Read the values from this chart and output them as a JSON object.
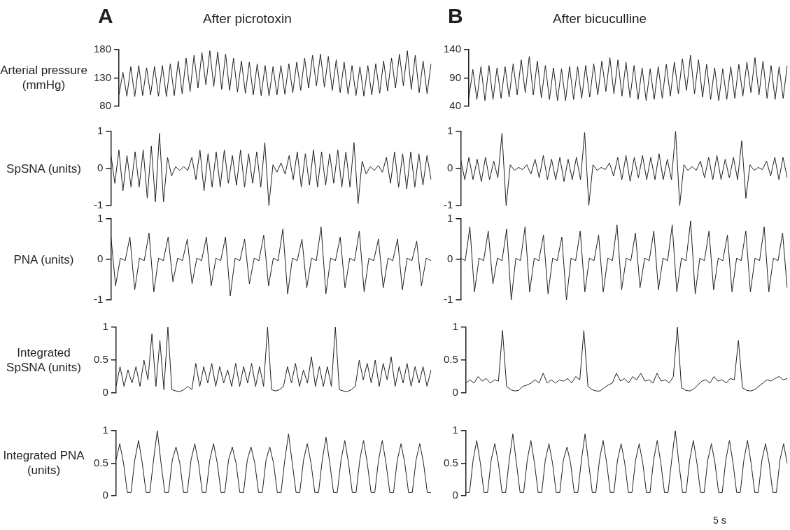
{
  "chart_data": [
    {
      "type": "line",
      "title": "After picrotoxin",
      "annotations": [
        "A"
      ],
      "ylabel": "Arterial pressure (mmHg)",
      "color": "#231f20",
      "tick_labels": "y",
      "ylim": [
        80,
        180
      ],
      "yticks": [
        80,
        130,
        180
      ],
      "categories": [
        null,
        null,
        null,
        null,
        null,
        null,
        null,
        null,
        null,
        null,
        null,
        null,
        null,
        null,
        null,
        null,
        null,
        null,
        null,
        null,
        null,
        null,
        null,
        null,
        null,
        null,
        null,
        null,
        null,
        null,
        null,
        null,
        null,
        null,
        null,
        null,
        null,
        null,
        null,
        null,
        null,
        null,
        null,
        null,
        null,
        null,
        null,
        null,
        null,
        null,
        null,
        null,
        null,
        null,
        null,
        null,
        null,
        null,
        null,
        null,
        null,
        null,
        null,
        null,
        null,
        null,
        null,
        null,
        null,
        null,
        null,
        null,
        null,
        null,
        null,
        null,
        null,
        null,
        null,
        null
      ],
      "values": [
        100,
        140,
        98,
        150,
        97,
        152,
        99,
        148,
        100,
        150,
        98,
        152,
        97,
        155,
        99,
        160,
        102,
        165,
        106,
        170,
        112,
        175,
        118,
        178,
        115,
        176,
        110,
        172,
        108,
        165,
        105,
        160,
        103,
        158,
        100,
        155,
        99,
        152,
        98,
        150,
        100,
        152,
        101,
        155,
        104,
        158,
        108,
        165,
        112,
        170,
        116,
        172,
        114,
        168,
        108,
        162,
        104,
        158,
        101,
        152,
        99,
        150,
        98,
        152,
        100,
        155,
        103,
        160,
        107,
        165,
        112,
        172,
        116,
        178,
        110,
        170,
        104,
        160,
        102,
        155
      ]
    },
    {
      "type": "line",
      "title": "After bicuculline",
      "annotations": [
        "B"
      ],
      "color": "#231f20",
      "tick_labels": "y",
      "ylim": [
        40,
        140
      ],
      "yticks": [
        40,
        90,
        140
      ],
      "categories": [
        null,
        null,
        null,
        null,
        null,
        null,
        null,
        null,
        null,
        null,
        null,
        null,
        null,
        null,
        null,
        null,
        null,
        null,
        null,
        null,
        null,
        null,
        null,
        null,
        null,
        null,
        null,
        null,
        null,
        null,
        null,
        null,
        null,
        null,
        null,
        null,
        null,
        null,
        null,
        null,
        null,
        null,
        null,
        null,
        null,
        null,
        null,
        null,
        null,
        null,
        null,
        null,
        null,
        null,
        null,
        null,
        null,
        null,
        null,
        null,
        null,
        null,
        null,
        null,
        null,
        null,
        null,
        null,
        null,
        null,
        null,
        null,
        null,
        null,
        null,
        null,
        null,
        null,
        null,
        null
      ],
      "values": [
        55,
        105,
        52,
        110,
        50,
        112,
        52,
        108,
        54,
        110,
        56,
        115,
        60,
        122,
        64,
        128,
        60,
        120,
        55,
        112,
        52,
        108,
        50,
        106,
        50,
        110,
        52,
        110,
        54,
        112,
        56,
        115,
        60,
        120,
        66,
        126,
        62,
        122,
        58,
        118,
        55,
        112,
        52,
        108,
        50,
        106,
        52,
        110,
        54,
        114,
        58,
        118,
        62,
        124,
        68,
        130,
        62,
        122,
        56,
        114,
        52,
        108,
        50,
        106,
        52,
        110,
        54,
        114,
        58,
        118,
        64,
        126,
        60,
        120,
        54,
        112,
        52,
        110,
        54,
        112
      ]
    },
    {
      "type": "line",
      "ylabel": "SpSNA (units)",
      "color": "#231f20",
      "tick_labels": "y",
      "ylim": [
        -1,
        1
      ],
      "yticks": [
        -1,
        0,
        1
      ],
      "categories": [
        null,
        null,
        null,
        null,
        null,
        null,
        null,
        null,
        null,
        null,
        null,
        null,
        null,
        null,
        null,
        null,
        null,
        null,
        null,
        null,
        null,
        null,
        null,
        null,
        null,
        null,
        null,
        null,
        null,
        null,
        null,
        null,
        null,
        null,
        null,
        null,
        null,
        null,
        null,
        null,
        null,
        null,
        null,
        null,
        null,
        null,
        null,
        null,
        null,
        null,
        null,
        null,
        null,
        null,
        null,
        null,
        null,
        null,
        null,
        null,
        null,
        null,
        null,
        null,
        null,
        null,
        null,
        null,
        null,
        null,
        null,
        null,
        null,
        null,
        null,
        null,
        null,
        null,
        null,
        null
      ],
      "values": [
        0.4,
        -0.4,
        0.5,
        -0.6,
        0.35,
        -0.5,
        0.45,
        -0.5,
        0.5,
        -0.8,
        0.6,
        -0.9,
        0.95,
        -0.9,
        0.3,
        -0.2,
        0.05,
        -0.05,
        0.05,
        -0.05,
        0.3,
        -0.3,
        0.5,
        -0.6,
        0.4,
        -0.5,
        0.45,
        -0.5,
        0.5,
        -0.4,
        0.35,
        -0.45,
        0.5,
        -0.5,
        0.4,
        -0.4,
        0.45,
        -0.5,
        0.7,
        -1.0,
        0.1,
        -0.1,
        0.15,
        -0.15,
        0.35,
        -0.3,
        0.45,
        -0.5,
        0.4,
        -0.45,
        0.5,
        -0.5,
        0.45,
        -0.45,
        0.4,
        -0.4,
        0.5,
        -0.5,
        0.45,
        -0.5,
        0.7,
        -0.95,
        0.2,
        -0.15,
        0.05,
        -0.05,
        0.08,
        -0.1,
        0.3,
        -0.4,
        0.45,
        -0.5,
        0.4,
        -0.55,
        0.45,
        -0.5,
        0.4,
        -0.45,
        0.35,
        -0.3
      ]
    },
    {
      "type": "line",
      "color": "#231f20",
      "tick_labels": "y",
      "ylim": [
        -1,
        1
      ],
      "yticks": [
        -1,
        0,
        1
      ],
      "categories": [
        null,
        null,
        null,
        null,
        null,
        null,
        null,
        null,
        null,
        null,
        null,
        null,
        null,
        null,
        null,
        null,
        null,
        null,
        null,
        null,
        null,
        null,
        null,
        null,
        null,
        null,
        null,
        null,
        null,
        null,
        null,
        null,
        null,
        null,
        null,
        null,
        null,
        null,
        null,
        null,
        null,
        null,
        null,
        null,
        null,
        null,
        null,
        null,
        null,
        null,
        null,
        null,
        null,
        null,
        null,
        null,
        null,
        null,
        null,
        null,
        null,
        null,
        null,
        null,
        null,
        null,
        null,
        null,
        null,
        null,
        null,
        null,
        null,
        null,
        null,
        null,
        null,
        null,
        null,
        null
      ],
      "values": [
        0.25,
        -0.3,
        0.3,
        -0.3,
        0.25,
        -0.35,
        0.3,
        -0.3,
        0.2,
        -0.25,
        0.95,
        -1.0,
        0.1,
        -0.05,
        0.03,
        -0.03,
        0.1,
        -0.15,
        0.25,
        -0.25,
        0.35,
        -0.3,
        0.25,
        -0.3,
        0.3,
        -0.35,
        0.25,
        -0.3,
        0.3,
        -0.3,
        0.97,
        -1.0,
        0.1,
        -0.05,
        0.03,
        -0.03,
        0.15,
        -0.2,
        0.3,
        -0.3,
        0.35,
        -0.35,
        0.3,
        -0.25,
        0.35,
        -0.3,
        0.3,
        -0.3,
        0.4,
        -0.3,
        0.25,
        -0.3,
        1.0,
        -1.0,
        0.1,
        -0.05,
        0.05,
        -0.05,
        0.2,
        -0.25,
        0.3,
        -0.3,
        0.35,
        -0.3,
        0.25,
        -0.25,
        0.3,
        -0.3,
        0.75,
        -0.8,
        0.1,
        -0.05,
        0.03,
        -0.03,
        0.2,
        -0.2,
        0.3,
        -0.3,
        0.3,
        -0.25
      ]
    },
    {
      "type": "line",
      "ylabel": "PNA (units)",
      "color": "#231f20",
      "tick_labels": "y",
      "ylim": [
        -1,
        1
      ],
      "yticks": [
        -1,
        0,
        1
      ],
      "categories": [
        null,
        null,
        null,
        null,
        null,
        null,
        null,
        null,
        null,
        null,
        null,
        null,
        null,
        null,
        null,
        null,
        null,
        null,
        null,
        null,
        null,
        null,
        null,
        null,
        null,
        null,
        null,
        null,
        null,
        null,
        null,
        null,
        null,
        null,
        null,
        null,
        null,
        null,
        null,
        null,
        null,
        null,
        null,
        null,
        null,
        null,
        null,
        null,
        null,
        null,
        null,
        null,
        null,
        null,
        null,
        null,
        null,
        null,
        null,
        null,
        null,
        null,
        null,
        null,
        null,
        null,
        null,
        null
      ],
      "values": [
        0.6,
        -0.65,
        0.03,
        -0.03,
        0.55,
        -0.75,
        0.03,
        -0.03,
        0.65,
        -0.8,
        0.03,
        -0.03,
        0.55,
        -0.55,
        0.03,
        -0.03,
        0.5,
        -0.6,
        0.03,
        -0.03,
        0.55,
        -0.65,
        0.03,
        -0.03,
        0.55,
        -0.9,
        0.03,
        -0.03,
        0.5,
        -0.6,
        0.03,
        -0.03,
        0.6,
        -0.65,
        0.03,
        -0.03,
        0.75,
        -0.85,
        0.03,
        -0.03,
        0.5,
        -0.7,
        0.03,
        -0.03,
        0.8,
        -0.85,
        0.03,
        -0.03,
        0.55,
        -0.7,
        0.03,
        -0.03,
        0.7,
        -0.8,
        0.03,
        -0.03,
        0.5,
        -0.7,
        0.03,
        -0.03,
        0.5,
        -0.75,
        0.03,
        -0.03,
        0.45,
        -0.65,
        0.03,
        -0.03
      ]
    },
    {
      "type": "line",
      "color": "#231f20",
      "tick_labels": "y",
      "ylim": [
        -1,
        1
      ],
      "yticks": [
        -1,
        0,
        1
      ],
      "categories": [
        null,
        null,
        null,
        null,
        null,
        null,
        null,
        null,
        null,
        null,
        null,
        null,
        null,
        null,
        null,
        null,
        null,
        null,
        null,
        null,
        null,
        null,
        null,
        null,
        null,
        null,
        null,
        null,
        null,
        null,
        null,
        null,
        null,
        null,
        null,
        null,
        null,
        null,
        null,
        null,
        null,
        null,
        null,
        null,
        null,
        null,
        null,
        null,
        null,
        null,
        null,
        null,
        null,
        null,
        null,
        null,
        null,
        null,
        null,
        null,
        null,
        null,
        null,
        null,
        null,
        null,
        null,
        null,
        null,
        null,
        null,
        null
      ],
      "values": [
        0.03,
        -0.03,
        0.8,
        -0.8,
        0.03,
        -0.03,
        0.7,
        -0.6,
        0.03,
        -0.03,
        0.75,
        -1.0,
        0.03,
        -0.03,
        0.8,
        -0.8,
        0.03,
        -0.03,
        0.6,
        -0.85,
        0.03,
        -0.03,
        0.55,
        -1.0,
        0.03,
        -0.03,
        0.7,
        -0.8,
        0.03,
        -0.03,
        0.6,
        -0.8,
        0.03,
        -0.03,
        0.85,
        -0.75,
        0.03,
        -0.03,
        0.65,
        -0.7,
        0.03,
        -0.03,
        0.7,
        -0.75,
        0.03,
        -0.03,
        0.85,
        -0.8,
        0.03,
        -0.03,
        0.95,
        -0.85,
        0.03,
        -0.03,
        0.7,
        -0.75,
        0.03,
        -0.03,
        0.6,
        -0.8,
        0.03,
        -0.03,
        0.7,
        -0.8,
        0.03,
        -0.03,
        0.8,
        -0.8,
        0.03,
        -0.03,
        0.65,
        -0.7
      ]
    },
    {
      "type": "line",
      "ylabel": "Integrated SpSNA (units)",
      "color": "#231f20",
      "tick_labels": "y",
      "ylim": [
        0,
        1
      ],
      "yticks": [
        0,
        0.5,
        1
      ],
      "categories": [
        null,
        null,
        null,
        null,
        null,
        null,
        null,
        null,
        null,
        null,
        null,
        null,
        null,
        null,
        null,
        null,
        null,
        null,
        null,
        null,
        null,
        null,
        null,
        null,
        null,
        null,
        null,
        null,
        null,
        null,
        null,
        null,
        null,
        null,
        null,
        null,
        null,
        null,
        null,
        null,
        null,
        null,
        null,
        null,
        null,
        null,
        null,
        null,
        null,
        null,
        null,
        null,
        null,
        null,
        null,
        null,
        null,
        null,
        null,
        null,
        null,
        null,
        null,
        null,
        null,
        null,
        null,
        null,
        null,
        null,
        null,
        null,
        null,
        null,
        null,
        null,
        null,
        null,
        null,
        null
      ],
      "values": [
        0.1,
        0.4,
        0.1,
        0.35,
        0.15,
        0.4,
        0.1,
        0.5,
        0.2,
        0.9,
        0.1,
        0.8,
        0.05,
        1.0,
        0.05,
        0.03,
        0.02,
        0.05,
        0.1,
        0.05,
        0.45,
        0.1,
        0.4,
        0.15,
        0.45,
        0.1,
        0.4,
        0.15,
        0.35,
        0.1,
        0.45,
        0.1,
        0.4,
        0.15,
        0.45,
        0.1,
        0.4,
        0.1,
        1.0,
        0.05,
        0.03,
        0.05,
        0.1,
        0.4,
        0.15,
        0.45,
        0.1,
        0.35,
        0.15,
        0.55,
        0.1,
        0.4,
        0.1,
        0.4,
        0.1,
        1.0,
        0.05,
        0.03,
        0.02,
        0.05,
        0.1,
        0.5,
        0.2,
        0.45,
        0.15,
        0.5,
        0.1,
        0.45,
        0.2,
        0.55,
        0.1,
        0.4,
        0.15,
        0.45,
        0.1,
        0.4,
        0.15,
        0.4,
        0.1,
        0.35
      ]
    },
    {
      "type": "line",
      "color": "#231f20",
      "tick_labels": "y",
      "ylim": [
        0,
        1
      ],
      "yticks": [
        0,
        0.5,
        1
      ],
      "categories": [
        null,
        null,
        null,
        null,
        null,
        null,
        null,
        null,
        null,
        null,
        null,
        null,
        null,
        null,
        null,
        null,
        null,
        null,
        null,
        null,
        null,
        null,
        null,
        null,
        null,
        null,
        null,
        null,
        null,
        null,
        null,
        null,
        null,
        null,
        null,
        null,
        null,
        null,
        null,
        null,
        null,
        null,
        null,
        null,
        null,
        null,
        null,
        null,
        null,
        null,
        null,
        null,
        null,
        null,
        null,
        null,
        null,
        null,
        null,
        null,
        null,
        null,
        null,
        null,
        null,
        null,
        null,
        null,
        null,
        null,
        null,
        null,
        null,
        null,
        null,
        null,
        null,
        null,
        null,
        null
      ],
      "values": [
        0.15,
        0.2,
        0.15,
        0.25,
        0.18,
        0.22,
        0.15,
        0.2,
        0.18,
        0.95,
        0.1,
        0.05,
        0.03,
        0.04,
        0.1,
        0.12,
        0.15,
        0.2,
        0.15,
        0.3,
        0.15,
        0.2,
        0.15,
        0.2,
        0.18,
        0.22,
        0.15,
        0.25,
        0.2,
        0.95,
        0.1,
        0.05,
        0.03,
        0.03,
        0.08,
        0.12,
        0.15,
        0.3,
        0.18,
        0.22,
        0.15,
        0.25,
        0.2,
        0.3,
        0.18,
        0.2,
        0.15,
        0.3,
        0.18,
        0.2,
        0.15,
        0.25,
        1.0,
        0.08,
        0.04,
        0.03,
        0.06,
        0.12,
        0.18,
        0.2,
        0.15,
        0.25,
        0.18,
        0.2,
        0.15,
        0.22,
        0.2,
        0.8,
        0.08,
        0.04,
        0.03,
        0.05,
        0.1,
        0.15,
        0.2,
        0.18,
        0.22,
        0.25,
        0.2,
        0.22
      ]
    },
    {
      "type": "line",
      "ylabel": "Integrated PNA (units)",
      "color": "#231f20",
      "tick_labels": "y",
      "ylim": [
        0,
        1
      ],
      "yticks": [
        0,
        0.5,
        1
      ],
      "categories": [
        null,
        null,
        null,
        null,
        null,
        null,
        null,
        null,
        null,
        null,
        null,
        null,
        null,
        null,
        null,
        null,
        null,
        null,
        null,
        null,
        null,
        null,
        null,
        null,
        null,
        null,
        null,
        null,
        null,
        null,
        null,
        null,
        null,
        null,
        null,
        null,
        null,
        null,
        null,
        null,
        null,
        null,
        null,
        null,
        null,
        null,
        null,
        null,
        null,
        null,
        null,
        null,
        null,
        null,
        null,
        null,
        null,
        null,
        null,
        null,
        null,
        null,
        null,
        null,
        null,
        null,
        null,
        null,
        null,
        null,
        null,
        null,
        null,
        null,
        null,
        null,
        null,
        null,
        null,
        null,
        null,
        null,
        null,
        null,
        null
      ],
      "values": [
        0.55,
        0.8,
        0.5,
        0.05,
        0.05,
        0.55,
        0.85,
        0.5,
        0.05,
        0.05,
        0.55,
        1.0,
        0.5,
        0.05,
        0.05,
        0.55,
        0.75,
        0.5,
        0.05,
        0.05,
        0.55,
        0.8,
        0.5,
        0.05,
        0.05,
        0.55,
        0.8,
        0.5,
        0.05,
        0.05,
        0.55,
        0.75,
        0.5,
        0.05,
        0.05,
        0.55,
        0.75,
        0.5,
        0.05,
        0.05,
        0.55,
        0.75,
        0.5,
        0.05,
        0.05,
        0.55,
        0.95,
        0.5,
        0.05,
        0.05,
        0.55,
        0.8,
        0.5,
        0.05,
        0.05,
        0.55,
        0.9,
        0.5,
        0.05,
        0.05,
        0.55,
        0.85,
        0.5,
        0.05,
        0.05,
        0.55,
        0.85,
        0.5,
        0.05,
        0.05,
        0.55,
        0.85,
        0.5,
        0.05,
        0.05,
        0.55,
        0.8,
        0.5,
        0.05,
        0.05,
        0.55,
        0.8,
        0.5,
        0.05,
        0.05
      ]
    },
    {
      "type": "line",
      "annotations": [
        "5 s"
      ],
      "color": "#231f20",
      "tick_labels": "y",
      "ylim": [
        0,
        1
      ],
      "yticks": [
        0,
        0.5,
        1
      ],
      "categories": [
        null,
        null,
        null,
        null,
        null,
        null,
        null,
        null,
        null,
        null,
        null,
        null,
        null,
        null,
        null,
        null,
        null,
        null,
        null,
        null,
        null,
        null,
        null,
        null,
        null,
        null,
        null,
        null,
        null,
        null,
        null,
        null,
        null,
        null,
        null,
        null,
        null,
        null,
        null,
        null,
        null,
        null,
        null,
        null,
        null,
        null,
        null,
        null,
        null,
        null,
        null,
        null,
        null,
        null,
        null,
        null,
        null,
        null,
        null,
        null,
        null,
        null,
        null,
        null,
        null,
        null,
        null,
        null,
        null,
        null,
        null,
        null,
        null,
        null,
        null,
        null,
        null,
        null,
        null,
        null,
        null,
        null,
        null,
        null,
        null,
        null,
        null,
        null,
        null,
        null
      ],
      "values": [
        0.05,
        0.05,
        0.55,
        0.85,
        0.5,
        0.05,
        0.05,
        0.55,
        0.8,
        0.5,
        0.05,
        0.05,
        0.55,
        0.95,
        0.5,
        0.05,
        0.05,
        0.55,
        0.85,
        0.5,
        0.05,
        0.05,
        0.55,
        0.8,
        0.5,
        0.05,
        0.05,
        0.55,
        0.75,
        0.5,
        0.05,
        0.05,
        0.55,
        0.95,
        0.5,
        0.05,
        0.05,
        0.55,
        0.85,
        0.5,
        0.05,
        0.05,
        0.55,
        0.8,
        0.5,
        0.05,
        0.05,
        0.55,
        0.8,
        0.5,
        0.05,
        0.05,
        0.55,
        0.85,
        0.5,
        0.05,
        0.05,
        0.55,
        1.0,
        0.5,
        0.05,
        0.05,
        0.55,
        0.85,
        0.5,
        0.05,
        0.05,
        0.55,
        0.8,
        0.5,
        0.05,
        0.05,
        0.55,
        0.85,
        0.5,
        0.05,
        0.05,
        0.55,
        0.85,
        0.5,
        0.05,
        0.05,
        0.55,
        0.8,
        0.5,
        0.05,
        0.05,
        0.55,
        0.8,
        0.5
      ]
    }
  ]
}
